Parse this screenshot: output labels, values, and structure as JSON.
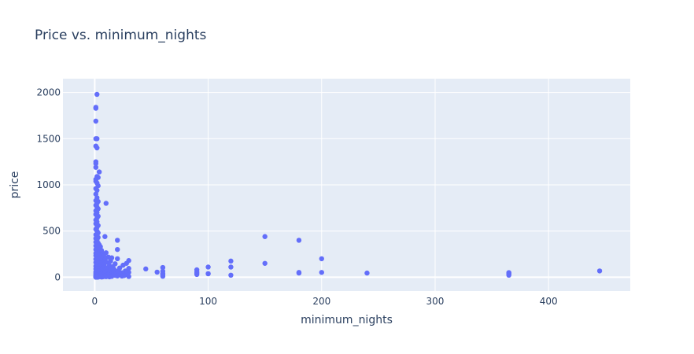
{
  "chart_data": {
    "type": "scatter",
    "title": "Price vs. minimum_nights",
    "xlabel": "minimum_nights",
    "ylabel": "price",
    "xlim": [
      -28,
      472
    ],
    "ylim": [
      -150,
      2150
    ],
    "x_ticks": [
      0,
      100,
      200,
      300,
      400
    ],
    "y_ticks": [
      0,
      500,
      1000,
      1500,
      2000
    ],
    "grid": true,
    "legend": "none",
    "colors": {
      "marker": "#636efa",
      "plot_bg": "#e5ecf6",
      "grid": "#ffffff",
      "text": "#2a3f5f"
    },
    "series": [
      {
        "points": [
          [
            2,
            1980
          ],
          [
            1,
            1840
          ],
          [
            1,
            1830
          ],
          [
            1,
            1690
          ],
          [
            1,
            1500
          ],
          [
            2,
            1500
          ],
          [
            1,
            1420
          ],
          [
            2,
            1400
          ],
          [
            1,
            1250
          ],
          [
            1,
            1230
          ],
          [
            1,
            1190
          ],
          [
            4,
            1140
          ],
          [
            2,
            1090
          ],
          [
            3,
            1080
          ],
          [
            1,
            1060
          ],
          [
            1,
            1040
          ],
          [
            2,
            1020
          ],
          [
            3,
            990
          ],
          [
            1,
            960
          ],
          [
            2,
            940
          ],
          [
            1,
            900
          ],
          [
            2,
            860
          ],
          [
            1,
            830
          ],
          [
            3,
            820
          ],
          [
            2,
            800
          ],
          [
            10,
            800
          ],
          [
            1,
            780
          ],
          [
            2,
            760
          ],
          [
            3,
            740
          ],
          [
            1,
            720
          ],
          [
            2,
            700
          ],
          [
            1,
            680
          ],
          [
            3,
            660
          ],
          [
            2,
            640
          ],
          [
            1,
            620
          ],
          [
            2,
            600
          ],
          [
            1,
            580
          ],
          [
            3,
            560
          ],
          [
            2,
            540
          ],
          [
            1,
            520
          ],
          [
            2,
            500
          ],
          [
            3,
            480
          ],
          [
            1,
            460
          ],
          [
            2,
            450
          ],
          [
            9,
            440
          ],
          [
            3,
            430
          ],
          [
            1,
            420
          ],
          [
            20,
            400
          ],
          [
            2,
            400
          ],
          [
            1,
            380
          ],
          [
            3,
            370
          ],
          [
            2,
            360
          ],
          [
            4,
            350
          ],
          [
            1,
            340
          ],
          [
            5,
            330
          ],
          [
            2,
            320
          ],
          [
            3,
            310
          ],
          [
            20,
            300
          ],
          [
            1,
            300
          ],
          [
            6,
            290
          ],
          [
            2,
            280
          ],
          [
            4,
            275
          ],
          [
            3,
            270
          ],
          [
            10,
            265
          ],
          [
            1,
            260
          ],
          [
            7,
            255
          ],
          [
            2,
            250
          ],
          [
            5,
            245
          ],
          [
            3,
            240
          ],
          [
            1,
            235
          ],
          [
            8,
            230
          ],
          [
            4,
            225
          ],
          [
            2,
            220
          ],
          [
            12,
            218
          ],
          [
            15,
            210
          ],
          [
            6,
            205
          ],
          [
            20,
            200
          ],
          [
            3,
            200
          ],
          [
            1,
            195
          ],
          [
            9,
            190
          ],
          [
            5,
            185
          ],
          [
            30,
            180
          ],
          [
            2,
            180
          ],
          [
            14,
            175
          ],
          [
            7,
            170
          ],
          [
            4,
            165
          ],
          [
            11,
            160
          ],
          [
            1,
            160
          ],
          [
            3,
            155
          ],
          [
            28,
            150
          ],
          [
            6,
            150
          ],
          [
            18,
            145
          ],
          [
            2,
            140
          ],
          [
            8,
            135
          ],
          [
            5,
            130
          ],
          [
            25,
            130
          ],
          [
            13,
            125
          ],
          [
            1,
            120
          ],
          [
            4,
            118
          ],
          [
            16,
            115
          ],
          [
            9,
            110
          ],
          [
            60,
            105
          ],
          [
            2,
            105
          ],
          [
            7,
            100
          ],
          [
            22,
            100
          ],
          [
            3,
            95
          ],
          [
            30,
            95
          ],
          [
            12,
            92
          ],
          [
            45,
            90
          ],
          [
            5,
            90
          ],
          [
            1,
            88
          ],
          [
            17,
            85
          ],
          [
            10,
            82
          ],
          [
            6,
            80
          ],
          [
            90,
            80
          ],
          [
            2,
            78
          ],
          [
            14,
            75
          ],
          [
            21,
            72
          ],
          [
            3,
            70
          ],
          [
            8,
            68
          ],
          [
            27,
            68
          ],
          [
            60,
            65
          ],
          [
            4,
            62
          ],
          [
            11,
            60
          ],
          [
            1,
            58
          ],
          [
            19,
            56
          ],
          [
            55,
            55
          ],
          [
            7,
            55
          ],
          [
            30,
            52
          ],
          [
            2,
            50
          ],
          [
            15,
            50
          ],
          [
            24,
            48
          ],
          [
            5,
            46
          ],
          [
            9,
            45
          ],
          [
            90,
            45
          ],
          [
            1,
            44
          ],
          [
            13,
            42
          ],
          [
            20,
            40
          ],
          [
            3,
            40
          ],
          [
            60,
            40
          ],
          [
            28,
            38
          ],
          [
            6,
            38
          ],
          [
            100,
            38
          ],
          [
            17,
            36
          ],
          [
            2,
            35
          ],
          [
            10,
            34
          ],
          [
            25,
            32
          ],
          [
            4,
            32
          ],
          [
            90,
            30
          ],
          [
            8,
            30
          ],
          [
            1,
            30
          ],
          [
            22,
            29
          ],
          [
            12,
            28
          ],
          [
            3,
            27
          ],
          [
            16,
            26
          ],
          [
            29,
            25
          ],
          [
            5,
            25
          ],
          [
            60,
            22
          ],
          [
            2,
            22
          ],
          [
            11,
            21
          ],
          [
            7,
            20
          ],
          [
            18,
            20
          ],
          [
            1,
            19
          ],
          [
            26,
            18
          ],
          [
            4,
            17
          ],
          [
            14,
            16
          ],
          [
            9,
            15
          ],
          [
            3,
            15
          ],
          [
            20,
            14
          ],
          [
            6,
            13
          ],
          [
            2,
            12
          ],
          [
            24,
            12
          ],
          [
            12,
            11
          ],
          [
            1,
            10
          ],
          [
            60,
            10
          ],
          [
            5,
            10
          ],
          [
            15,
            9
          ],
          [
            8,
            8
          ],
          [
            3,
            8
          ],
          [
            30,
            8
          ],
          [
            2,
            7
          ],
          [
            10,
            6
          ],
          [
            1,
            5
          ],
          [
            4,
            5
          ],
          [
            7,
            4
          ],
          [
            13,
            4
          ],
          [
            2,
            3
          ],
          [
            1,
            2
          ],
          [
            6,
            2
          ],
          [
            3,
            1
          ],
          [
            1,
            0
          ],
          [
            2,
            0
          ],
          [
            100,
            110
          ],
          [
            100,
            38
          ],
          [
            120,
            175
          ],
          [
            120,
            110
          ],
          [
            120,
            22
          ],
          [
            150,
            440
          ],
          [
            150,
            150
          ],
          [
            180,
            400
          ],
          [
            180,
            52
          ],
          [
            180,
            45
          ],
          [
            200,
            200
          ],
          [
            200,
            52
          ],
          [
            240,
            45
          ],
          [
            365,
            50
          ],
          [
            365,
            45
          ],
          [
            365,
            40
          ],
          [
            365,
            30
          ],
          [
            365,
            22
          ],
          [
            445,
            68
          ],
          [
            90,
            60
          ],
          [
            60,
            35
          ]
        ]
      }
    ]
  }
}
